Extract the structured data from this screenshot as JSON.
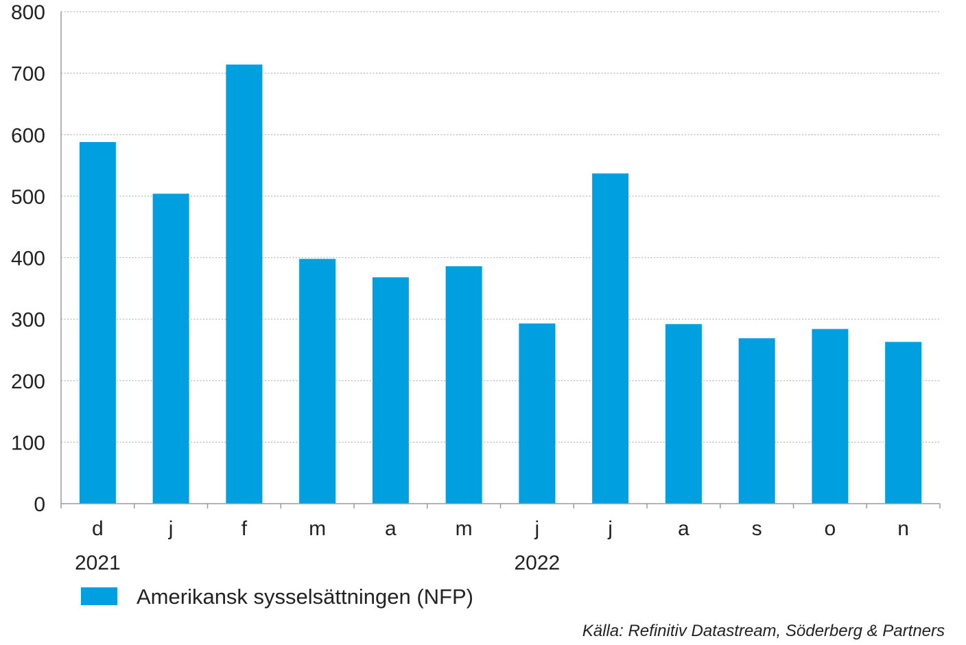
{
  "chart_data": {
    "type": "bar",
    "categories": [
      "d",
      "j",
      "f",
      "m",
      "a",
      "m",
      "j",
      "j",
      "a",
      "s",
      "o",
      "n"
    ],
    "year_labels": [
      {
        "label": "2021",
        "category_index": 0
      },
      {
        "label": "2022",
        "category_index": 6
      }
    ],
    "series": [
      {
        "name": "Amerikansk sysselsättningen (NFP)",
        "color": "#009fdf",
        "values": [
          588,
          504,
          714,
          398,
          368,
          386,
          293,
          537,
          292,
          269,
          284,
          263
        ]
      }
    ],
    "ylim": [
      0,
      800
    ],
    "yticks": [
      0,
      100,
      200,
      300,
      400,
      500,
      600,
      700,
      800
    ],
    "grid": true,
    "legend": "bottom-left",
    "source": "Källa: Refinitiv Datastream, Söderberg & Partners"
  }
}
